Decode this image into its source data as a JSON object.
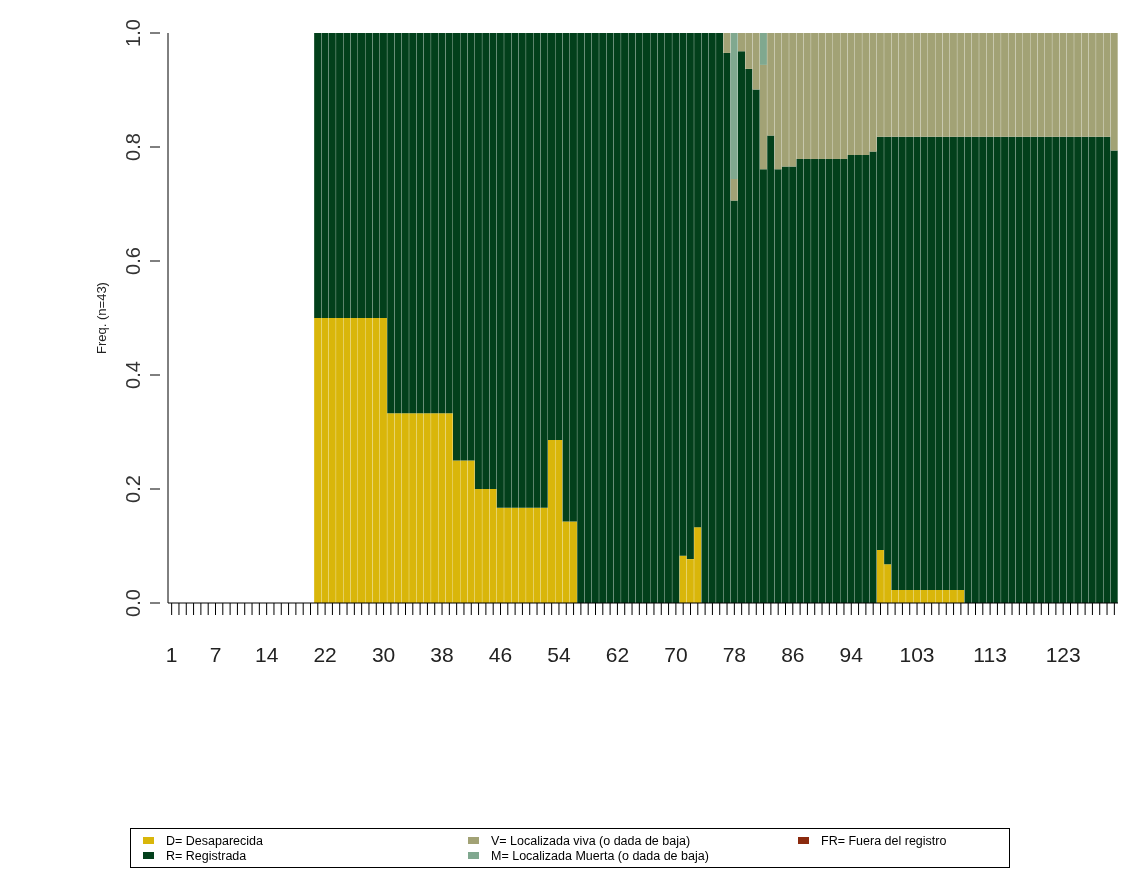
{
  "chart_data": {
    "type": "bar",
    "stacked": true,
    "ylabel": "Freq. (n=43)",
    "ylim": [
      0,
      1
    ],
    "yticks": [
      {
        "value": 0,
        "label": "0.0"
      },
      0.2,
      0.4,
      0.6,
      0.8,
      {
        "value": 1,
        "label": "1.0"
      }
    ],
    "grid": false,
    "legend": "bottom",
    "categories": [
      "1",
      null,
      null,
      null,
      null,
      null,
      "7",
      null,
      null,
      null,
      null,
      null,
      null,
      "14",
      null,
      null,
      null,
      null,
      null,
      null,
      null,
      "22",
      null,
      null,
      null,
      null,
      null,
      null,
      null,
      "30",
      null,
      null,
      null,
      null,
      null,
      null,
      null,
      "38",
      null,
      null,
      null,
      null,
      null,
      null,
      null,
      "46",
      null,
      null,
      null,
      null,
      null,
      null,
      null,
      "54",
      null,
      null,
      null,
      null,
      null,
      null,
      null,
      "62",
      null,
      null,
      null,
      null,
      null,
      null,
      null,
      "70",
      null,
      null,
      null,
      null,
      null,
      null,
      null,
      "78",
      null,
      null,
      null,
      null,
      null,
      null,
      null,
      "86",
      null,
      null,
      null,
      null,
      null,
      null,
      null,
      "94",
      null,
      null,
      null,
      null,
      null,
      null,
      null,
      null,
      "103",
      null,
      null,
      null,
      null,
      null,
      null,
      null,
      null,
      null,
      "113",
      null,
      null,
      null,
      null,
      null,
      null,
      null,
      null,
      null,
      "123",
      null,
      null,
      null,
      null,
      null,
      null,
      null
    ],
    "series": [
      {
        "name": "D= Desaparecida",
        "color": "#d9b60a",
        "values": [
          null,
          null,
          null,
          null,
          null,
          null,
          null,
          null,
          null,
          null,
          null,
          null,
          null,
          null,
          null,
          null,
          null,
          null,
          null,
          null,
          0.5,
          0.5,
          0.5,
          0.5,
          0.5,
          0.5,
          0.5,
          0.5,
          0.5,
          0.5,
          0.333,
          0.333,
          0.333,
          0.333,
          0.333,
          0.333,
          0.333,
          0.333,
          0.333,
          0.25,
          0.25,
          0.25,
          0.2,
          0.2,
          0.2,
          0.167,
          0.167,
          0.167,
          0.167,
          0.167,
          0.167,
          0.167,
          0.286,
          0.286,
          0.143,
          0.143,
          0,
          0,
          0,
          0,
          0,
          0,
          0,
          0,
          0,
          0,
          0,
          0,
          0,
          0,
          0.083,
          0.077,
          0.133,
          0,
          0,
          0,
          0,
          0,
          0,
          0,
          0,
          0,
          0,
          0,
          0,
          0,
          0,
          0,
          0,
          0,
          0,
          0,
          0,
          0,
          0,
          0,
          0,
          0.093,
          0.068,
          0.023,
          0.023,
          0.023,
          0.023,
          0.023,
          0.023,
          0.023,
          0.023,
          0.023,
          0.023,
          0,
          0,
          0,
          0,
          0,
          0,
          0,
          0,
          0,
          0,
          0,
          0,
          0,
          0,
          0,
          0,
          0,
          0,
          0,
          0,
          0
        ]
      },
      {
        "name": "R= Registrada",
        "color": "#02401b",
        "values": [
          null,
          null,
          null,
          null,
          null,
          null,
          null,
          null,
          null,
          null,
          null,
          null,
          null,
          null,
          null,
          null,
          null,
          null,
          null,
          null,
          0.5,
          0.5,
          0.5,
          0.5,
          0.5,
          0.5,
          0.5,
          0.5,
          0.5,
          0.5,
          0.667,
          0.667,
          0.667,
          0.667,
          0.667,
          0.667,
          0.667,
          0.667,
          0.667,
          0.75,
          0.75,
          0.75,
          0.8,
          0.8,
          0.8,
          0.833,
          0.833,
          0.833,
          0.833,
          0.833,
          0.833,
          0.833,
          0.714,
          0.714,
          0.857,
          0.857,
          1,
          1,
          1,
          1,
          1,
          1,
          1,
          1,
          1,
          1,
          1,
          1,
          1,
          1,
          0.917,
          0.923,
          0.867,
          1,
          1,
          1,
          0.965,
          0.706,
          0.968,
          0.937,
          0.901,
          0.761,
          0.82,
          0.761,
          0.766,
          0.766,
          0.779,
          0.779,
          0.779,
          0.779,
          0.779,
          0.779,
          0.779,
          0.786,
          0.786,
          0.786,
          0.792,
          0.725,
          0.75,
          0.795,
          0.795,
          0.795,
          0.795,
          0.795,
          0.795,
          0.795,
          0.795,
          0.795,
          0.795,
          0.818,
          0.818,
          0.818,
          0.818,
          0.818,
          0.818,
          0.818,
          0.818,
          0.818,
          0.818,
          0.818,
          0.818,
          0.818,
          0.818,
          0.818,
          0.818,
          0.818,
          0.818,
          0.818,
          0.818,
          0.794
        ]
      },
      {
        "name": "V= Localizada viva (o dada de baja)",
        "color": "#a2a275",
        "values": [
          null,
          null,
          null,
          null,
          null,
          null,
          null,
          null,
          null,
          null,
          null,
          null,
          null,
          null,
          null,
          null,
          null,
          null,
          null,
          null,
          0,
          0,
          0,
          0,
          0,
          0,
          0,
          0,
          0,
          0,
          0,
          0,
          0,
          0,
          0,
          0,
          0,
          0,
          0,
          0,
          0,
          0,
          0,
          0,
          0,
          0,
          0,
          0,
          0,
          0,
          0,
          0,
          0,
          0,
          0,
          0,
          0,
          0,
          0,
          0,
          0,
          0,
          0,
          0,
          0,
          0,
          0,
          0,
          0,
          0,
          0,
          0,
          0,
          0,
          0,
          0,
          0.035,
          0.038,
          0.032,
          0.063,
          0.099,
          0.183,
          0.18,
          0.239,
          0.234,
          0.234,
          0.221,
          0.221,
          0.221,
          0.221,
          0.221,
          0.221,
          0.221,
          0.214,
          0.214,
          0.214,
          0.208,
          0.182,
          0.182,
          0.182,
          0.182,
          0.182,
          0.182,
          0.182,
          0.182,
          0.182,
          0.182,
          0.182,
          0.182,
          0.182,
          0.182,
          0.182,
          0.182,
          0.182,
          0.182,
          0.182,
          0.182,
          0.182,
          0.182,
          0.182,
          0.182,
          0.182,
          0.182,
          0.182,
          0.182,
          0.182,
          0.182,
          0.182,
          0.182,
          0.206
        ]
      },
      {
        "name": "M= Localizada Muerta (o dada de baja)",
        "color": "#80a88f",
        "values": [
          null,
          null,
          null,
          null,
          null,
          null,
          null,
          null,
          null,
          null,
          null,
          null,
          null,
          null,
          null,
          null,
          null,
          null,
          null,
          null,
          0,
          0,
          0,
          0,
          0,
          0,
          0,
          0,
          0,
          0,
          0,
          0,
          0,
          0,
          0,
          0,
          0,
          0,
          0,
          0,
          0,
          0,
          0,
          0,
          0,
          0,
          0,
          0,
          0,
          0,
          0,
          0,
          0,
          0,
          0,
          0,
          0,
          0,
          0,
          0,
          0,
          0,
          0,
          0,
          0,
          0,
          0,
          0,
          0,
          0,
          0,
          0,
          0,
          0,
          0,
          0,
          0,
          0.256,
          0,
          0,
          0,
          0.056,
          0,
          0,
          0,
          0,
          0,
          0,
          0,
          0,
          0,
          0,
          0,
          0,
          0,
          0,
          0,
          0,
          0,
          0,
          0,
          0,
          0,
          0,
          0,
          0,
          0,
          0,
          0,
          0,
          0,
          0,
          0,
          0,
          0,
          0,
          0,
          0,
          0,
          0,
          0,
          0,
          0,
          0,
          0,
          0,
          0,
          0,
          0,
          0
        ]
      },
      {
        "name": "FR= Fuera del registro",
        "color": "#8b2a0e",
        "values": [
          null,
          null,
          null,
          null,
          null,
          null,
          null,
          null,
          null,
          null,
          null,
          null,
          null,
          null,
          null,
          null,
          null,
          null,
          null,
          null,
          0,
          0,
          0,
          0,
          0,
          0,
          0,
          0,
          0,
          0,
          0,
          0,
          0,
          0,
          0,
          0,
          0,
          0,
          0,
          0,
          0,
          0,
          0,
          0,
          0,
          0,
          0,
          0,
          0,
          0,
          0,
          0,
          0,
          0,
          0,
          0,
          0,
          0,
          0,
          0,
          0,
          0,
          0,
          0,
          0,
          0,
          0,
          0,
          0,
          0,
          0,
          0,
          0,
          0,
          0,
          0,
          0,
          0,
          0,
          0,
          0,
          0,
          0,
          0,
          0,
          0,
          0,
          0,
          0,
          0,
          0,
          0,
          0,
          0,
          0,
          0,
          0,
          0,
          0,
          0,
          0,
          0,
          0,
          0,
          0,
          0,
          0,
          0,
          0,
          0,
          0,
          0,
          0,
          0,
          0,
          0,
          0,
          0,
          0,
          0,
          0,
          0,
          0,
          0,
          0,
          0,
          0,
          0,
          0,
          0
        ]
      }
    ]
  }
}
